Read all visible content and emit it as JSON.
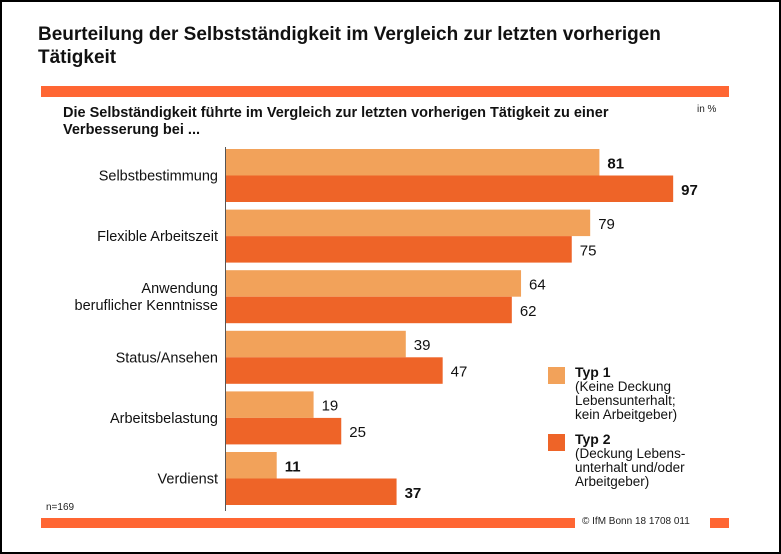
{
  "title": "Beurteilung der Selbstständigkeit im Vergleich zur letzten vorherigen Tätigkeit",
  "subtitle": "Die Selbständigkeit führte im Vergleich zur letzten vorherigen Tätigkeit zu einer Verbesserung bei ...",
  "unit_label": "in %",
  "sample_note": "n=169",
  "copyright": "© IfM Bonn 18 1708 011",
  "colors": {
    "typ1": "#F2A25A",
    "typ2": "#EE6428",
    "accent_bar": "#FF6633"
  },
  "legend": [
    {
      "name": "Typ 1",
      "desc": "(Keine Deckung\nLebensunterhalt;\nkein Arbeitgeber)"
    },
    {
      "name": "Typ 2",
      "desc": "(Deckung Lebens-\nunterhalt und/oder\nArbeitgeber)"
    }
  ],
  "chart_data": {
    "type": "bar",
    "orientation": "horizontal",
    "title": "Beurteilung der Selbstständigkeit im Vergleich zur letzten vorherigen Tätigkeit",
    "subtitle": "Die Selbständigkeit führte im Vergleich zur letzten vorherigen Tätigkeit zu einer Verbesserung bei ...",
    "unit": "in %",
    "categories": [
      [
        "Selbstbestimmung"
      ],
      [
        "Flexible Arbeitszeit"
      ],
      [
        "Anwendung",
        "beruflicher Kenntnisse"
      ],
      [
        "Status/Ansehen"
      ],
      [
        "Arbeitsbelastung"
      ],
      [
        "Verdienst"
      ]
    ],
    "series": [
      {
        "name": "Typ 1 (Keine Deckung Lebensunterhalt; kein Arbeitgeber)",
        "values": [
          81,
          79,
          64,
          39,
          19,
          11
        ],
        "bold_labels": [
          true,
          false,
          false,
          false,
          false,
          true
        ]
      },
      {
        "name": "Typ 2 (Deckung Lebensunterhalt und/oder Arbeitgeber)",
        "values": [
          97,
          75,
          62,
          47,
          25,
          37
        ],
        "bold_labels": [
          true,
          false,
          false,
          false,
          false,
          true
        ]
      }
    ],
    "xlim": [
      0,
      100
    ],
    "grid": false,
    "legend_position": "bottom-right"
  }
}
